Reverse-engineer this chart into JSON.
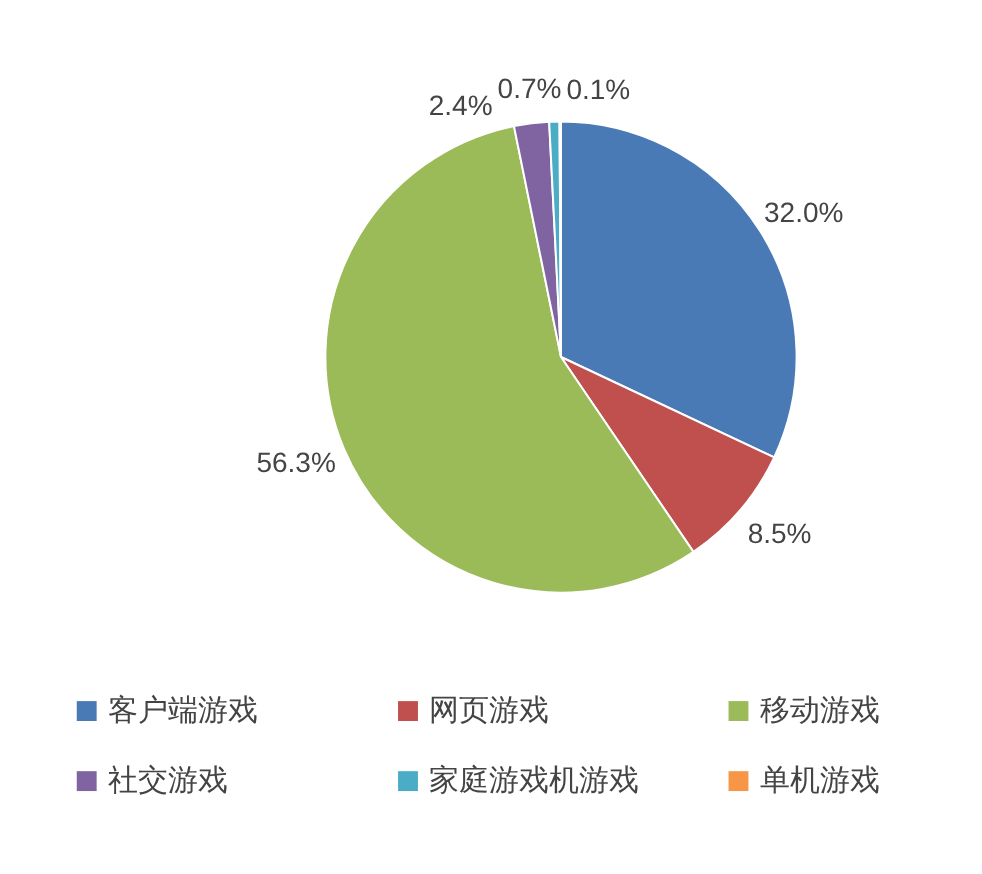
{
  "chart_data": {
    "type": "pie",
    "categories": [
      "客户端游戏",
      "网页游戏",
      "移动游戏",
      "社交游戏",
      "家庭游戏机游戏",
      "单机游戏"
    ],
    "values": [
      32.0,
      8.5,
      56.3,
      2.4,
      0.7,
      0.1
    ],
    "colors": [
      "#4a7ab5",
      "#c0504d",
      "#9bbb59",
      "#8064a2",
      "#4bacc6",
      "#f79646"
    ],
    "value_labels": [
      "32.0%",
      "8.5%",
      "56.3%",
      "2.4%",
      "0.7%",
      "0.1%"
    ],
    "legend": "bottom"
  }
}
